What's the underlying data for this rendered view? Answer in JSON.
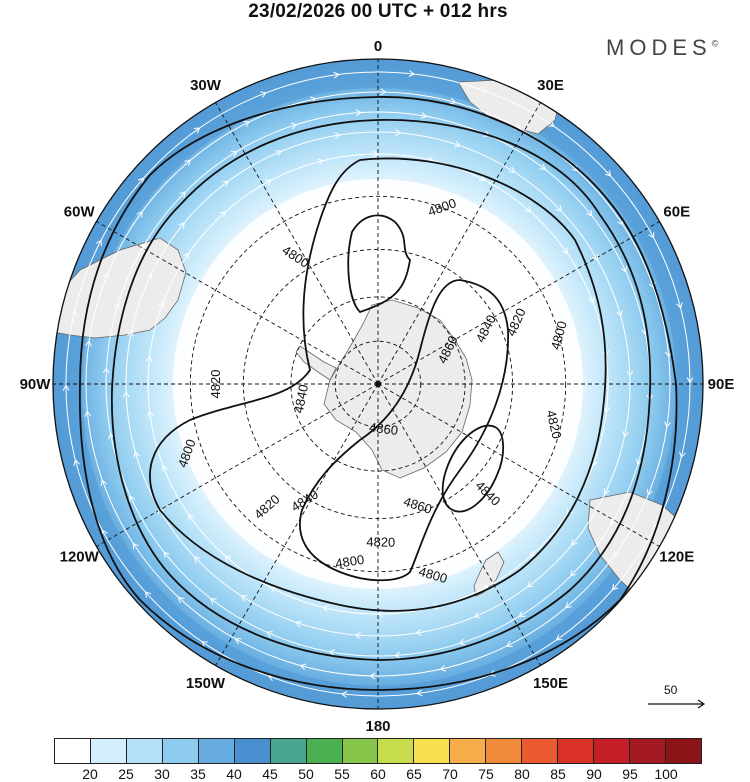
{
  "title": "23/02/2026  00 UTC  + 012 hrs",
  "brand": {
    "name": "MODES",
    "mark": "©"
  },
  "meridian_labels": [
    {
      "text": "0",
      "lon": 0
    },
    {
      "text": "30E",
      "lon": 30
    },
    {
      "text": "60E",
      "lon": 60
    },
    {
      "text": "90E",
      "lon": 90
    },
    {
      "text": "120E",
      "lon": 120
    },
    {
      "text": "150E",
      "lon": 150
    },
    {
      "text": "180",
      "lon": 180
    },
    {
      "text": "150W",
      "lon": -150
    },
    {
      "text": "120W",
      "lon": -120
    },
    {
      "text": "90W",
      "lon": -90
    },
    {
      "text": "60W",
      "lon": -60
    },
    {
      "text": "30W",
      "lon": -30
    }
  ],
  "contour_labels": [
    {
      "text": "4800",
      "lon": 20,
      "lat": -30
    },
    {
      "text": "4800",
      "lon": -33,
      "lat": -40
    },
    {
      "text": "4800",
      "lon": 75,
      "lat": -30
    },
    {
      "text": "4800",
      "lon": -110,
      "lat": -26
    },
    {
      "text": "4800",
      "lon": -171,
      "lat": -32
    },
    {
      "text": "4800",
      "lon": 164,
      "lat": -27
    },
    {
      "text": "4820",
      "lon": 66,
      "lat": -40
    },
    {
      "text": "4820",
      "lon": -90,
      "lat": -37
    },
    {
      "text": "4820",
      "lon": 103,
      "lat": -32
    },
    {
      "text": "4820",
      "lon": -138,
      "lat": -36
    },
    {
      "text": "4820",
      "lon": 179,
      "lat": -38
    },
    {
      "text": "4840",
      "lon": 63,
      "lat": -49
    },
    {
      "text": "4840",
      "lon": -101,
      "lat": -63
    },
    {
      "text": "4840",
      "lon": -148,
      "lat": -44
    },
    {
      "text": "4840",
      "lon": 135,
      "lat": -39
    },
    {
      "text": "4860",
      "lon": 64,
      "lat": -63
    },
    {
      "text": "4860",
      "lon": 173,
      "lat": -74
    },
    {
      "text": "4860",
      "lon": 162,
      "lat": -47
    }
  ],
  "reference_vector": {
    "label": "50"
  },
  "colorbar": {
    "labels": [
      "20",
      "25",
      "30",
      "35",
      "40",
      "45",
      "50",
      "55",
      "60",
      "65",
      "70",
      "75",
      "80",
      "85",
      "90",
      "95",
      "100"
    ],
    "colors": [
      "#ffffff",
      "#d3eefc",
      "#b4e0f7",
      "#8ecbef",
      "#66ace0",
      "#4a8fcf",
      "#4aa58f",
      "#4ab050",
      "#86c44a",
      "#c7dc4d",
      "#f6e052",
      "#f6ad4c",
      "#f28a3c",
      "#ea5a30",
      "#d93028",
      "#c41e26",
      "#a31a22",
      "#8a1418"
    ]
  }
}
